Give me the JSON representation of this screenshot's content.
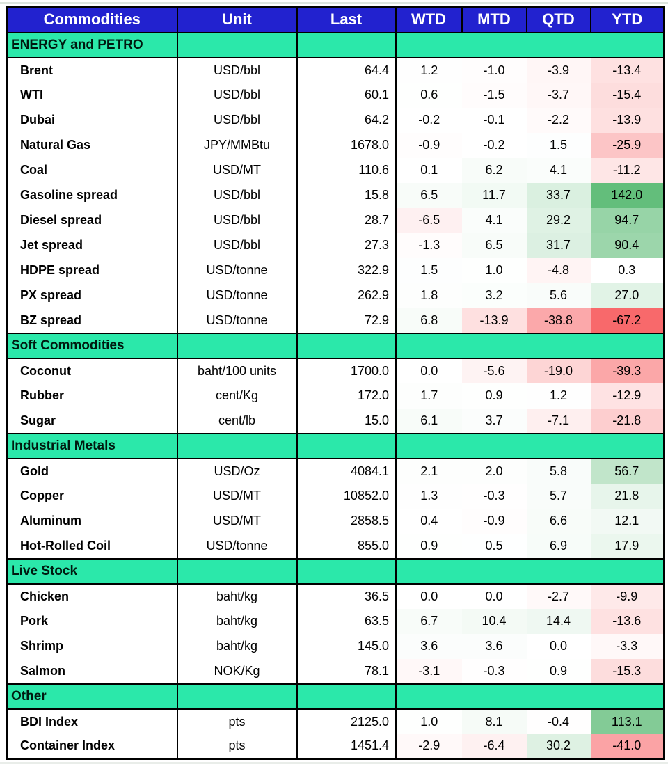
{
  "colors": {
    "header_bg": "#2222CF",
    "header_text": "#FFFFFF",
    "section_bg": "#2BE8AA",
    "heat_positive_end": "#63BE7B",
    "heat_negative_end": "#F8696B",
    "heat_midpoint_color": "#FFFFFF"
  },
  "heat_scale": {
    "midpoint": 0,
    "note": "linear white-to-end scale, endpoints at data min/max"
  },
  "table": {
    "columns": [
      "Commodities",
      "Unit",
      "Last",
      "WTD",
      "MTD",
      "QTD",
      "YTD"
    ],
    "sections": [
      {
        "title": "ENERGY and PETRO",
        "rows": [
          {
            "name": "Brent",
            "unit": "USD/bbl",
            "last": 64.4,
            "wtd": 1.2,
            "mtd": -1.0,
            "qtd": -3.9,
            "ytd": -13.4
          },
          {
            "name": "WTI",
            "unit": "USD/bbl",
            "last": 60.1,
            "wtd": 0.6,
            "mtd": -1.5,
            "qtd": -3.7,
            "ytd": -15.4
          },
          {
            "name": "Dubai",
            "unit": "USD/bbl",
            "last": 64.2,
            "wtd": -0.2,
            "mtd": -0.1,
            "qtd": -2.2,
            "ytd": -13.9
          },
          {
            "name": "Natural Gas",
            "unit": "JPY/MMBtu",
            "last": 1678.0,
            "wtd": -0.9,
            "mtd": -0.2,
            "qtd": 1.5,
            "ytd": -25.9
          },
          {
            "name": "Coal",
            "unit": "USD/MT",
            "last": 110.6,
            "wtd": 0.1,
            "mtd": 6.2,
            "qtd": 4.1,
            "ytd": -11.2
          },
          {
            "name": "Gasoline spread",
            "unit": "USD/bbl",
            "last": 15.8,
            "wtd": 6.5,
            "mtd": 11.7,
            "qtd": 33.7,
            "ytd": 142.0
          },
          {
            "name": "Diesel spread",
            "unit": "USD/bbl",
            "last": 28.7,
            "wtd": -6.5,
            "mtd": 4.1,
            "qtd": 29.2,
            "ytd": 94.7
          },
          {
            "name": "Jet spread",
            "unit": "USD/bbl",
            "last": 27.3,
            "wtd": -1.3,
            "mtd": 6.5,
            "qtd": 31.7,
            "ytd": 90.4
          },
          {
            "name": "HDPE spread",
            "unit": "USD/tonne",
            "last": 322.9,
            "wtd": 1.5,
            "mtd": 1.0,
            "qtd": -4.8,
            "ytd": 0.3
          },
          {
            "name": "PX spread",
            "unit": "USD/tonne",
            "last": 262.9,
            "wtd": 1.8,
            "mtd": 3.2,
            "qtd": 5.6,
            "ytd": 27.0
          },
          {
            "name": "BZ spread",
            "unit": "USD/tonne",
            "last": 72.9,
            "wtd": 6.8,
            "mtd": -13.9,
            "qtd": -38.8,
            "ytd": -67.2
          }
        ]
      },
      {
        "title": "Soft Commodities",
        "rows": [
          {
            "name": "Coconut",
            "unit": "baht/100 units",
            "last": 1700.0,
            "wtd": 0.0,
            "mtd": -5.6,
            "qtd": -19.0,
            "ytd": -39.3
          },
          {
            "name": "Rubber",
            "unit": "cent/Kg",
            "last": 172.0,
            "wtd": 1.7,
            "mtd": 0.9,
            "qtd": 1.2,
            "ytd": -12.9
          },
          {
            "name": "Sugar",
            "unit": "cent/lb",
            "last": 15.0,
            "wtd": 6.1,
            "mtd": 3.7,
            "qtd": -7.1,
            "ytd": -21.8
          }
        ]
      },
      {
        "title": "Industrial Metals",
        "rows": [
          {
            "name": "Gold",
            "unit": "USD/Oz",
            "last": 4084.1,
            "wtd": 2.1,
            "mtd": 2.0,
            "qtd": 5.8,
            "ytd": 56.7
          },
          {
            "name": "Copper",
            "unit": "USD/MT",
            "last": 10852.0,
            "wtd": 1.3,
            "mtd": -0.3,
            "qtd": 5.7,
            "ytd": 21.8
          },
          {
            "name": "Aluminum",
            "unit": "USD/MT",
            "last": 2858.5,
            "wtd": 0.4,
            "mtd": -0.9,
            "qtd": 6.6,
            "ytd": 12.1
          },
          {
            "name": "Hot-Rolled Coil",
            "unit": "USD/tonne",
            "last": 855.0,
            "wtd": 0.9,
            "mtd": 0.5,
            "qtd": 6.9,
            "ytd": 17.9
          }
        ]
      },
      {
        "title": "Live Stock",
        "rows": [
          {
            "name": "Chicken",
            "unit": "baht/kg",
            "last": 36.5,
            "wtd": 0.0,
            "mtd": 0.0,
            "qtd": -2.7,
            "ytd": -9.9
          },
          {
            "name": "Pork",
            "unit": "baht/kg",
            "last": 63.5,
            "wtd": 6.7,
            "mtd": 10.4,
            "qtd": 14.4,
            "ytd": -13.6
          },
          {
            "name": "Shrimp",
            "unit": "baht/kg",
            "last": 145.0,
            "wtd": 3.6,
            "mtd": 3.6,
            "qtd": 0.0,
            "ytd": -3.3
          },
          {
            "name": "Salmon",
            "unit": "NOK/Kg",
            "last": 78.1,
            "wtd": -3.1,
            "mtd": -0.3,
            "qtd": 0.9,
            "ytd": -15.3
          }
        ]
      },
      {
        "title": "Other",
        "rows": [
          {
            "name": "BDI Index",
            "unit": "pts",
            "last": 2125.0,
            "wtd": 1.0,
            "mtd": 8.1,
            "qtd": -0.4,
            "ytd": 113.1
          },
          {
            "name": "Container Index",
            "unit": "pts",
            "last": 1451.4,
            "wtd": -2.9,
            "mtd": -6.4,
            "qtd": 30.2,
            "ytd": -41.0
          }
        ]
      }
    ]
  }
}
